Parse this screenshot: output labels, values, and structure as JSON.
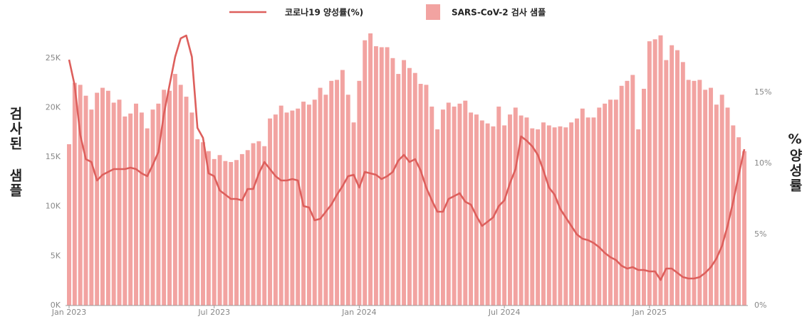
{
  "chart_data": {
    "type": "bar+line",
    "legend": "top",
    "grid": false,
    "y_label": "검사된 샘플",
    "y2_label": "%양성률",
    "categories": [
      "Jan 2023",
      null,
      null,
      null,
      null,
      null,
      null,
      null,
      null,
      null,
      null,
      null,
      null,
      null,
      null,
      null,
      null,
      null,
      null,
      null,
      null,
      null,
      null,
      null,
      null,
      null,
      "Jul 2023",
      null,
      null,
      null,
      null,
      null,
      null,
      null,
      null,
      null,
      null,
      null,
      null,
      null,
      null,
      null,
      null,
      null,
      null,
      null,
      null,
      null,
      null,
      null,
      null,
      null,
      "Jan 2024",
      null,
      null,
      null,
      null,
      null,
      null,
      null,
      null,
      null,
      null,
      null,
      null,
      null,
      null,
      null,
      null,
      null,
      null,
      null,
      null,
      null,
      null,
      null,
      null,
      null,
      "Jul 2024",
      null,
      null,
      null,
      null,
      null,
      null,
      null,
      null,
      null,
      null,
      null,
      null,
      null,
      null,
      null,
      null,
      null,
      null,
      null,
      null,
      null,
      null,
      null,
      null,
      null,
      "Jan 2025",
      null,
      null,
      null,
      null,
      null,
      null,
      null,
      null,
      null,
      null,
      null,
      null,
      null,
      null,
      null,
      null,
      null
    ],
    "series": [
      {
        "name": "SARS-CoV-2 검사 샘플",
        "kind": "bar",
        "color": "#f2a3a1",
        "axis": "y",
        "values": [
          16300,
          22500,
          22300,
          21200,
          19800,
          21500,
          22000,
          21700,
          20500,
          20800,
          19100,
          19400,
          20400,
          19500,
          17900,
          19800,
          20400,
          21800,
          21700,
          23400,
          22300,
          21100,
          19500,
          16800,
          16500,
          15600,
          14800,
          15200,
          14600,
          14500,
          14700,
          15300,
          15700,
          16400,
          16600,
          16100,
          18900,
          19300,
          20200,
          19500,
          19700,
          19900,
          20600,
          20300,
          20800,
          22000,
          21300,
          22700,
          22800,
          23800,
          21300,
          18500,
          22700,
          26800,
          27500,
          26200,
          26100,
          26100,
          25000,
          23400,
          24800,
          24000,
          23500,
          22400,
          22300,
          20100,
          17800,
          19800,
          20500,
          20100,
          20400,
          20700,
          19500,
          19300,
          18700,
          18400,
          18100,
          20100,
          18200,
          19300,
          20000,
          19200,
          19000,
          17900,
          17800,
          18500,
          18200,
          18000,
          18100,
          18000,
          18500,
          18900,
          19900,
          19000,
          19000,
          20000,
          20400,
          20800,
          20800,
          22200,
          22700,
          23300,
          17800,
          21900,
          26700,
          26900,
          27300,
          24800,
          26300,
          25800,
          24600,
          22800,
          22700,
          22800,
          21800,
          22000,
          20300,
          21300,
          20000,
          18200,
          17000,
          15600
        ]
      },
      {
        "name": "코로나19 양성률(%)",
        "kind": "line",
        "color": "#dd5f5c",
        "axis": "y2",
        "values": [
          17.3,
          15.5,
          12.0,
          10.3,
          10.1,
          8.8,
          9.2,
          9.4,
          9.6,
          9.6,
          9.6,
          9.7,
          9.6,
          9.3,
          9.1,
          9.9,
          10.8,
          13.5,
          15.5,
          17.5,
          18.8,
          19.0,
          17.5,
          12.5,
          11.8,
          9.3,
          9.1,
          8.1,
          7.8,
          7.5,
          7.5,
          7.4,
          8.2,
          8.2,
          9.3,
          10.1,
          9.6,
          9.1,
          8.8,
          8.8,
          8.9,
          8.8,
          7.0,
          6.9,
          6.0,
          6.1,
          6.6,
          7.1,
          7.8,
          8.4,
          9.1,
          9.2,
          8.3,
          9.4,
          9.3,
          9.2,
          8.9,
          9.1,
          9.4,
          10.2,
          10.6,
          10.1,
          10.3,
          9.5,
          8.3,
          7.4,
          6.6,
          6.6,
          7.5,
          7.7,
          7.9,
          7.3,
          7.1,
          6.3,
          5.6,
          5.9,
          6.2,
          7.0,
          7.4,
          8.6,
          9.6,
          11.9,
          11.6,
          11.2,
          10.6,
          9.5,
          8.3,
          7.8,
          6.8,
          6.2,
          5.6,
          5.0,
          4.7,
          4.6,
          4.4,
          4.1,
          3.7,
          3.4,
          3.2,
          2.8,
          2.6,
          2.7,
          2.5,
          2.5,
          2.4,
          2.4,
          1.8,
          2.6,
          2.6,
          2.3,
          2.0,
          1.9,
          1.9,
          2.0,
          2.3,
          2.7,
          3.3,
          4.2,
          5.6,
          7.3,
          9.2,
          11.0
        ]
      }
    ],
    "ylim": [
      0,
      28000
    ],
    "yticks": [
      {
        "value": 0,
        "label": "0K"
      },
      {
        "value": 5000,
        "label": "5K"
      },
      {
        "value": 10000,
        "label": "10K"
      },
      {
        "value": 15000,
        "label": "15K"
      },
      {
        "value": 20000,
        "label": "20K"
      },
      {
        "value": 25000,
        "label": "25K"
      }
    ],
    "y2lim": [
      0,
      19.5
    ],
    "y2ticks": [
      {
        "value": 0,
        "label": "0%"
      },
      {
        "value": 5,
        "label": "5%"
      },
      {
        "value": 10,
        "label": "10%"
      },
      {
        "value": 15,
        "label": "15%"
      }
    ]
  }
}
